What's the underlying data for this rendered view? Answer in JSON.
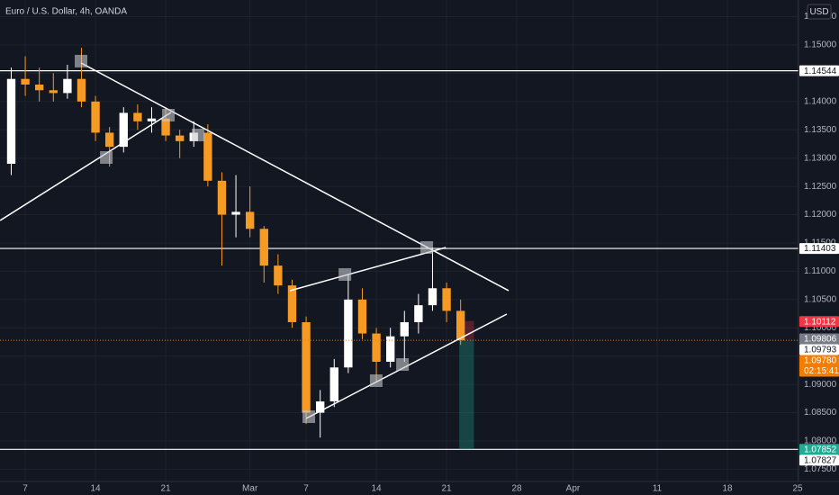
{
  "chart_data": {
    "type": "candlestick",
    "title": "Euro / U.S. Dollar, 4h, OANDA",
    "currency": "USD",
    "x": [
      -1,
      0,
      1,
      2,
      3,
      4,
      5,
      6,
      7,
      8,
      9,
      10,
      11,
      12,
      13,
      14,
      15,
      16,
      17,
      18,
      19,
      20,
      21,
      22,
      23,
      24,
      25,
      26,
      27,
      28,
      29,
      30,
      31
    ],
    "open": [
      1.129,
      1.144,
      1.143,
      1.142,
      1.1415,
      1.144,
      1.14,
      1.1345,
      1.132,
      1.138,
      1.1365,
      1.137,
      1.134,
      1.133,
      1.1345,
      1.126,
      1.12,
      1.1205,
      1.1175,
      1.111,
      1.1075,
      1.101,
      1.085,
      1.087,
      1.093,
      1.105,
      1.099,
      1.094,
      1.0985,
      1.101,
      1.104,
      1.107,
      1.103
    ],
    "high": [
      1.146,
      1.148,
      1.146,
      1.145,
      1.1465,
      1.1495,
      1.141,
      1.1355,
      1.139,
      1.1395,
      1.139,
      1.139,
      1.135,
      1.1365,
      1.136,
      1.1275,
      1.127,
      1.125,
      1.118,
      1.113,
      1.1085,
      1.102,
      1.089,
      1.0945,
      1.1095,
      1.107,
      1.1,
      1.1,
      1.103,
      1.106,
      1.1142,
      1.108,
      1.105
    ],
    "low": [
      1.127,
      1.141,
      1.14,
      1.14,
      1.1405,
      1.139,
      1.133,
      1.1285,
      1.131,
      1.135,
      1.1345,
      1.133,
      1.13,
      1.132,
      1.125,
      1.111,
      1.116,
      1.116,
      1.108,
      1.106,
      1.1,
      1.083,
      1.0806,
      1.086,
      1.092,
      1.098,
      1.0905,
      1.093,
      1.094,
      1.099,
      1.103,
      1.101,
      1.097
    ],
    "close": [
      1.144,
      1.143,
      1.142,
      1.1415,
      1.144,
      1.14,
      1.1345,
      1.132,
      1.138,
      1.1365,
      1.137,
      1.134,
      1.133,
      1.1345,
      1.126,
      1.12,
      1.1205,
      1.1175,
      1.111,
      1.1075,
      1.101,
      1.085,
      1.087,
      1.093,
      1.105,
      1.099,
      1.094,
      1.0985,
      1.101,
      1.104,
      1.107,
      1.103,
      1.0978
    ],
    "up_color": "#ffffff",
    "down_color": "#f59a23",
    "xlim": [
      -1.8,
      55.06
    ],
    "xticks": [
      {
        "value": 0,
        "label": "7"
      },
      {
        "value": 5,
        "label": "14"
      },
      {
        "value": 10,
        "label": "21"
      },
      {
        "value": 16,
        "label": "Mar"
      },
      {
        "value": 20,
        "label": "7"
      },
      {
        "value": 25,
        "label": "14"
      },
      {
        "value": 30,
        "label": "21"
      },
      {
        "value": 35,
        "label": "28"
      },
      {
        "value": 39,
        "label": "Apr"
      },
      {
        "value": 45,
        "label": "11"
      },
      {
        "value": 50,
        "label": "18"
      },
      {
        "value": 55,
        "label": "25"
      }
    ],
    "ylim": [
      1.07284,
      1.15795
    ],
    "yticks": [
      {
        "value": 1.075,
        "label": "1.07500"
      },
      {
        "value": 1.08,
        "label": "1.08000"
      },
      {
        "value": 1.085,
        "label": "1.08500"
      },
      {
        "value": 1.09,
        "label": "1.09000"
      },
      {
        "value": 1.095,
        "label": "1.09500"
      },
      {
        "value": 1.1,
        "label": "1.10000"
      },
      {
        "value": 1.105,
        "label": "1.10500"
      },
      {
        "value": 1.11,
        "label": "1.11000"
      },
      {
        "value": 1.115,
        "label": "1.11500"
      },
      {
        "value": 1.12,
        "label": "1.12000"
      },
      {
        "value": 1.125,
        "label": "1.12500"
      },
      {
        "value": 1.13,
        "label": "1.13000"
      },
      {
        "value": 1.135,
        "label": "1.13500"
      },
      {
        "value": 1.14,
        "label": "1.14000"
      },
      {
        "value": 1.145,
        "label": "1.14500"
      },
      {
        "value": 1.15,
        "label": "1.15000"
      },
      {
        "value": 1.155,
        "label": "1.15500"
      }
    ],
    "grid": true,
    "hlines": [
      1.14544,
      1.11403,
      1.07852
    ],
    "trendlines": [
      {
        "x": [
          3.97,
          34.42
        ],
        "y": [
          1.14682,
          1.10657
        ]
      },
      {
        "x": [
          -1.79,
          10.38
        ],
        "y": [
          1.11898,
          1.13807
        ]
      },
      {
        "x": [
          18.85,
          29.94
        ],
        "y": [
          1.10657,
          1.1142
        ]
      },
      {
        "x": [
          20.0,
          34.29
        ],
        "y": [
          1.08398,
          1.10243
        ]
      }
    ],
    "markers": {
      "x": [
        3.97,
        10.19,
        5.77,
        12.31,
        22.76,
        28.59,
        20.19,
        24.99,
        26.86
      ],
      "y": [
        1.14714,
        1.13759,
        1.13011,
        1.13409,
        1.10943,
        1.1142,
        1.08429,
        1.09066,
        1.09352
      ]
    },
    "position": {
      "x": [
        30.9,
        31.95
      ],
      "entry": 1.0978,
      "stop": 1.1012,
      "target": 1.07852
    },
    "price_labels": [
      {
        "value": 1.14544,
        "label": "1.14544",
        "color": "#ffffff"
      },
      {
        "value": 1.11403,
        "label": "1.11403",
        "color": "#ffffff"
      },
      {
        "value": 1.10112,
        "label": "1.10112",
        "color": "#f23645"
      },
      {
        "value": 1.09806,
        "label": "1.09806",
        "color": "#787b86"
      },
      {
        "value": 1.09793,
        "label": "1.09793",
        "color": "#ffffff"
      },
      {
        "value": 1.0978,
        "label": "1.09780",
        "color": "#f57c00",
        "countdown": "02:15:41"
      },
      {
        "value": 1.07852,
        "label": "1.07852",
        "color": "#22ab94"
      },
      {
        "value": 1.07827,
        "label": "1.07827",
        "color": "#ffffff"
      }
    ]
  }
}
